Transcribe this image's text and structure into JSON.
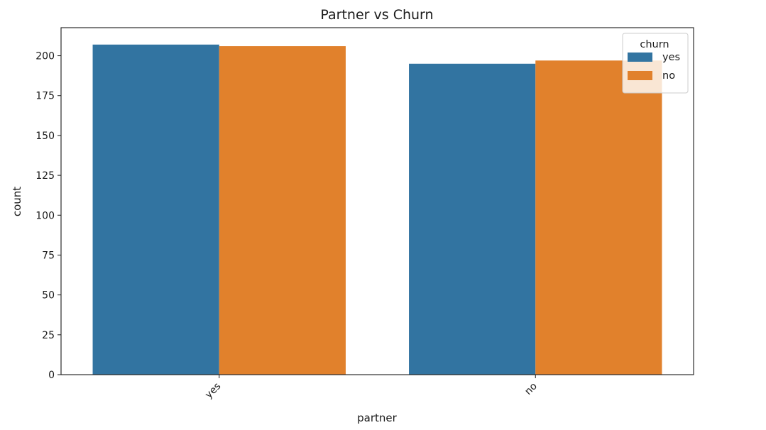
{
  "chart_data": {
    "type": "bar",
    "title": "Partner vs Churn",
    "xlabel": "partner",
    "ylabel": "count",
    "categories": [
      "yes",
      "no"
    ],
    "series": [
      {
        "name": "yes",
        "color": "#3274a1",
        "values": [
          207,
          195
        ]
      },
      {
        "name": "no",
        "color": "#e1812c",
        "values": [
          206,
          197
        ]
      }
    ],
    "ylim": [
      0,
      217.6
    ],
    "yticks": [
      0,
      25,
      50,
      75,
      100,
      125,
      150,
      175,
      200
    ],
    "legend": {
      "title": "churn",
      "position": "top-right"
    },
    "grid": false
  }
}
